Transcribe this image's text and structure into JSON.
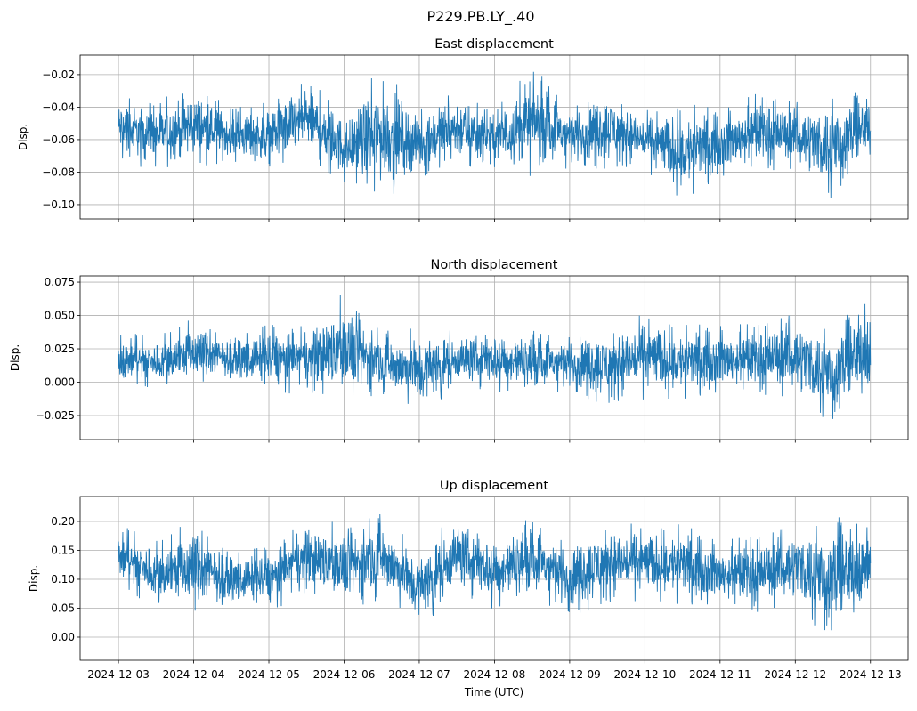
{
  "chart_data": {
    "type": "line",
    "suptitle": "P229.PB.LY_.40",
    "xlabel": "Time (UTC)",
    "x_tick_labels": [
      "2024-12-03",
      "2024-12-04",
      "2024-12-05",
      "2024-12-06",
      "2024-12-07",
      "2024-12-08",
      "2024-12-09",
      "2024-12-10",
      "2024-12-11",
      "2024-12-12",
      "2024-12-13"
    ],
    "xlim_days": [
      -0.51,
      10.5
    ],
    "envelope_x_days": [
      0,
      0.5,
      1,
      1.5,
      2,
      2.5,
      3,
      3.5,
      4,
      4.5,
      5,
      5.5,
      6,
      6.5,
      7,
      7.5,
      8,
      8.5,
      9,
      9.5,
      10
    ],
    "color": "#1f77b4",
    "grid": true,
    "panels": [
      {
        "title": "East displacement",
        "ylabel": "Disp.",
        "ylim": [
          -0.1088,
          -0.008
        ],
        "yticks": [
          -0.02,
          -0.04,
          -0.06,
          -0.08,
          -0.1
        ],
        "ytick_labels": [
          "−0.02",
          "−0.04",
          "−0.06",
          "−0.08",
          "−0.10"
        ],
        "mean": -0.057,
        "upper": [
          -0.03,
          -0.035,
          -0.022,
          -0.04,
          -0.035,
          -0.018,
          -0.04,
          -0.013,
          -0.04,
          -0.025,
          -0.04,
          -0.013,
          -0.035,
          -0.025,
          -0.04,
          -0.035,
          -0.04,
          -0.03,
          -0.035,
          -0.028,
          -0.028
        ],
        "lower": [
          -0.075,
          -0.08,
          -0.08,
          -0.075,
          -0.08,
          -0.075,
          -0.09,
          -0.1,
          -0.085,
          -0.08,
          -0.08,
          -0.085,
          -0.08,
          -0.08,
          -0.08,
          -0.1,
          -0.085,
          -0.08,
          -0.08,
          -0.1,
          -0.075
        ]
      },
      {
        "title": "North displacement",
        "ylabel": "Disp.",
        "ylim": [
          -0.043,
          0.0797
        ],
        "yticks": [
          0.075,
          0.05,
          0.025,
          0,
          -0.025
        ],
        "ytick_labels": [
          "0.075",
          "0.050",
          "0.025",
          "0.000",
          "−0.025"
        ],
        "mean": 0.018,
        "upper": [
          0.04,
          0.035,
          0.05,
          0.035,
          0.045,
          0.045,
          0.07,
          0.04,
          0.045,
          0.04,
          0.045,
          0.04,
          0.04,
          0.045,
          0.055,
          0.045,
          0.045,
          0.045,
          0.055,
          0.045,
          0.07
        ],
        "lower": [
          -0.005,
          -0.005,
          -0.005,
          0.0,
          -0.01,
          -0.01,
          -0.02,
          -0.01,
          -0.028,
          -0.005,
          -0.01,
          -0.01,
          -0.01,
          -0.02,
          -0.015,
          -0.015,
          -0.01,
          -0.01,
          -0.015,
          -0.035,
          -0.015
        ]
      },
      {
        "title": "Up displacement",
        "ylabel": "Disp.",
        "ylim": [
          -0.04,
          0.243
        ],
        "yticks": [
          0.2,
          0.15,
          0.1,
          0.05,
          0
        ],
        "ytick_labels": [
          "0.20",
          "0.15",
          "0.10",
          "0.05",
          "0.00"
        ],
        "mean": 0.125,
        "upper": [
          0.2,
          0.17,
          0.21,
          0.15,
          0.16,
          0.21,
          0.2,
          0.22,
          0.16,
          0.22,
          0.19,
          0.21,
          0.18,
          0.21,
          0.2,
          0.2,
          0.17,
          0.18,
          0.2,
          0.22,
          0.21
        ],
        "lower": [
          0.08,
          0.05,
          0.03,
          0.05,
          0.04,
          0.07,
          0.04,
          0.06,
          0.01,
          0.07,
          0.04,
          0.06,
          0.03,
          0.05,
          0.06,
          0.05,
          0.05,
          0.04,
          0.05,
          -0.025,
          0.05
        ]
      }
    ]
  }
}
